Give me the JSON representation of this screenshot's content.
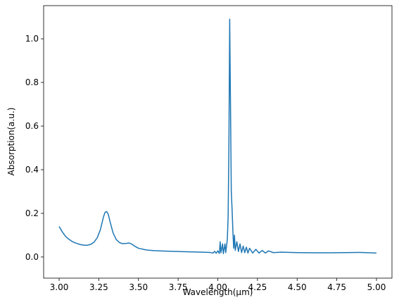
{
  "chart_data": {
    "type": "line",
    "xlabel": "Wavelength(μm)",
    "ylabel": "Absorption(a.u.)",
    "xlim": [
      2.9024,
      5.0976
    ],
    "ylim": [
      -0.097,
      1.152
    ],
    "xticks": [
      {
        "value": 3,
        "label": "3.00"
      },
      {
        "value": 3.25,
        "label": "3.25"
      },
      {
        "value": 3.5,
        "label": "3.50"
      },
      {
        "value": 3.75,
        "label": "3.75"
      },
      {
        "value": 4,
        "label": "4.00"
      },
      {
        "value": 4.25,
        "label": "4.25"
      },
      {
        "value": 4.5,
        "label": "4.50"
      },
      {
        "value": 4.75,
        "label": "4.75"
      },
      {
        "value": 5,
        "label": "5.00"
      }
    ],
    "yticks": [
      {
        "value": 0,
        "label": "0.0"
      },
      {
        "value": 0.2,
        "label": "0.2"
      },
      {
        "value": 0.4,
        "label": "0.4"
      },
      {
        "value": 0.6,
        "label": "0.6"
      },
      {
        "value": 0.8,
        "label": "0.8"
      },
      {
        "value": 1,
        "label": "1.0"
      }
    ],
    "series": [
      {
        "color": "#1f77b4",
        "x": [
          3.0,
          3.02,
          3.04,
          3.06,
          3.08,
          3.1,
          3.12,
          3.14,
          3.16,
          3.18,
          3.2,
          3.22,
          3.24,
          3.26,
          3.28,
          3.29,
          3.3,
          3.31,
          3.32,
          3.34,
          3.36,
          3.38,
          3.4,
          3.42,
          3.44,
          3.46,
          3.48,
          3.5,
          3.55,
          3.6,
          3.7,
          3.8,
          3.9,
          3.95,
          3.97,
          3.98,
          3.99,
          4.0,
          4.01,
          4.015,
          4.02,
          4.03,
          4.035,
          4.045,
          4.05,
          4.06,
          4.065,
          4.07,
          4.075,
          4.08,
          4.085,
          4.09,
          4.095,
          4.1,
          4.105,
          4.11,
          4.12,
          4.13,
          4.14,
          4.15,
          4.16,
          4.17,
          4.18,
          4.19,
          4.2,
          4.22,
          4.24,
          4.26,
          4.28,
          4.3,
          4.32,
          4.35,
          4.4,
          4.5,
          4.6,
          4.7,
          4.8,
          4.9,
          5.0
        ],
        "values": [
          0.14,
          0.115,
          0.095,
          0.082,
          0.072,
          0.065,
          0.06,
          0.056,
          0.054,
          0.054,
          0.058,
          0.068,
          0.088,
          0.125,
          0.185,
          0.205,
          0.208,
          0.195,
          0.165,
          0.11,
          0.08,
          0.066,
          0.061,
          0.062,
          0.064,
          0.058,
          0.048,
          0.04,
          0.032,
          0.029,
          0.026,
          0.024,
          0.022,
          0.021,
          0.018,
          0.026,
          0.017,
          0.028,
          0.016,
          0.07,
          0.02,
          0.06,
          0.015,
          0.06,
          0.02,
          0.08,
          0.18,
          0.5,
          1.09,
          0.7,
          0.3,
          0.22,
          0.12,
          0.04,
          0.1,
          0.03,
          0.07,
          0.025,
          0.06,
          0.02,
          0.05,
          0.02,
          0.045,
          0.018,
          0.04,
          0.018,
          0.035,
          0.018,
          0.03,
          0.018,
          0.028,
          0.02,
          0.022,
          0.02,
          0.019,
          0.019,
          0.02,
          0.021,
          0.018
        ]
      }
    ]
  }
}
